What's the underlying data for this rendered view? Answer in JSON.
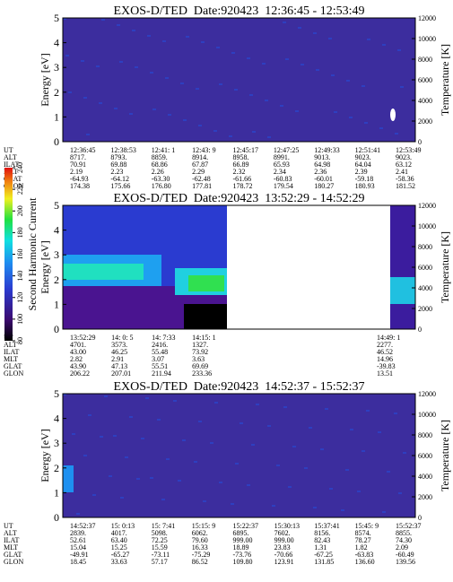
{
  "colorbar": {
    "label": "Second Harmonic Current",
    "lim": [
      80,
      240
    ],
    "ticks": [
      80,
      100,
      120,
      140,
      160,
      180,
      200,
      220,
      240
    ]
  },
  "panels": [
    {
      "title": "EXOS-D/TED  Date:920423  12:36:45 - 12:53:49",
      "ylabel": "Energy [eV]",
      "y2label": "Temperature [K]",
      "ylim": [
        0,
        5
      ],
      "yticks": [
        0,
        1,
        2,
        3,
        4,
        5
      ],
      "y2lim": [
        0,
        12000
      ],
      "y2ticks": [
        0,
        2000,
        4000,
        6000,
        8000,
        10000,
        12000
      ],
      "rows": [
        {
          "label": "UT",
          "values": [
            "12:36:45",
            "12:38:53",
            "12:41: 1",
            "12:43: 9",
            "12:45:17",
            "12:47:25",
            "12:49:33",
            "12:51:41",
            "12:53:49"
          ]
        },
        {
          "label": "ALT",
          "values": [
            "8717.",
            "8793.",
            "8859.",
            "8914.",
            "8958.",
            "8991.",
            "9013.",
            "9023.",
            "9023."
          ]
        },
        {
          "label": "ILAT",
          "values": [
            "70.91",
            "69.88",
            "68.86",
            "67.87",
            "66.89",
            "65.93",
            "64.98",
            "64.04",
            "63.12"
          ]
        },
        {
          "label": "MLT",
          "values": [
            "2.19",
            "2.23",
            "2.26",
            "2.29",
            "2.32",
            "2.34",
            "2.36",
            "2.39",
            "2.41"
          ]
        },
        {
          "label": "GLAT",
          "values": [
            "-64.93",
            "-64.12",
            "-63.30",
            "-62.48",
            "-61.66",
            "-60.83",
            "-60.01",
            "-59.18",
            "-58.36"
          ]
        },
        {
          "label": "GLON",
          "values": [
            "174.38",
            "175.66",
            "176.80",
            "177.81",
            "178.72",
            "179.54",
            "180.27",
            "180.93",
            "181.52"
          ]
        }
      ]
    },
    {
      "title": "EXOS-D/TED  Date:920423  13:52:29 - 14:52:29",
      "ylabel": "Energy [eV]",
      "y2label": "Temperature [K]",
      "ylim": [
        0,
        5
      ],
      "yticks": [
        0,
        1,
        2,
        3,
        4,
        5
      ],
      "y2lim": [
        0,
        12000
      ],
      "y2ticks": [
        0,
        2000,
        4000,
        6000,
        8000,
        10000,
        12000
      ],
      "rows": [
        {
          "label": "UT",
          "values": [
            "13:52:29",
            "14: 0: 5",
            "14: 7:33",
            "14:15: 1",
            "14:49: 1"
          ]
        },
        {
          "label": "ALT",
          "values": [
            "4701.",
            "3573.",
            "2416.",
            "1327.",
            "2277."
          ]
        },
        {
          "label": "ILAT",
          "values": [
            "43.00",
            "46.25",
            "55.48",
            "73.92",
            "46.52"
          ]
        },
        {
          "label": "MLT",
          "values": [
            "2.82",
            "2.91",
            "3.07",
            "3.63",
            "14.96"
          ]
        },
        {
          "label": "GLAT",
          "values": [
            "43.90",
            "47.13",
            "55.51",
            "69.69",
            "-39.83"
          ]
        },
        {
          "label": "GLON",
          "values": [
            "206.22",
            "207.01",
            "211.94",
            "233.36",
            "13.51"
          ]
        }
      ]
    },
    {
      "title": "EXOS-D/TED  Date:920423  14:52:37 - 15:52:37",
      "ylabel": "Energy [eV]",
      "y2label": "Temperature [K]",
      "ylim": [
        0,
        5
      ],
      "yticks": [
        0,
        1,
        2,
        3,
        4,
        5
      ],
      "y2lim": [
        0,
        12000
      ],
      "y2ticks": [
        0,
        2000,
        4000,
        6000,
        8000,
        10000,
        12000
      ],
      "rows": [
        {
          "label": "UT",
          "values": [
            "14:52:37",
            "15: 0:13",
            "15: 7:41",
            "15:15: 9",
            "15:22:37",
            "15:30:13",
            "15:37:41",
            "15:45: 9",
            "15:52:37"
          ]
        },
        {
          "label": "ALT",
          "values": [
            "2839.",
            "4017.",
            "5098.",
            "6062.",
            "6895.",
            "7602.",
            "8156.",
            "8574.",
            "8855."
          ]
        },
        {
          "label": "ILAT",
          "values": [
            "52.61",
            "63.40",
            "72.25",
            "79.60",
            "999.00",
            "999.00",
            "82.43",
            "78.27",
            "74.30"
          ]
        },
        {
          "label": "MLT",
          "values": [
            "15.04",
            "15.25",
            "15.59",
            "16.33",
            "18.89",
            "23.83",
            "1.31",
            "1.82",
            "2.09"
          ]
        },
        {
          "label": "GLAT",
          "values": [
            "-49.91",
            "-65.27",
            "-73.11",
            "-75.29",
            "-73.76",
            "-70.66",
            "-67.25",
            "-63.83",
            "-60.49"
          ]
        },
        {
          "label": "GLON",
          "values": [
            "18.45",
            "33.63",
            "57.17",
            "86.52",
            "109.80",
            "123.91",
            "131.85",
            "136.60",
            "139.56"
          ]
        }
      ]
    }
  ]
}
